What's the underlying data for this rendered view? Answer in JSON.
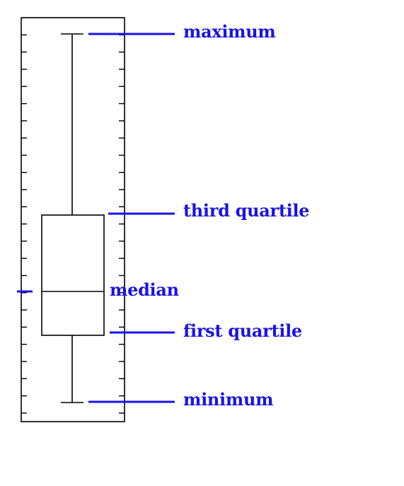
{
  "chart_data": {
    "type": "boxplot",
    "labels": {
      "maximum": "maximum",
      "third_quartile": "third quartile",
      "median": "median",
      "first_quartile": "first quartile",
      "minimum": "minimum"
    },
    "colors": {
      "annotation": "#1a12e6",
      "frame": "#000000"
    },
    "grid": false
  }
}
